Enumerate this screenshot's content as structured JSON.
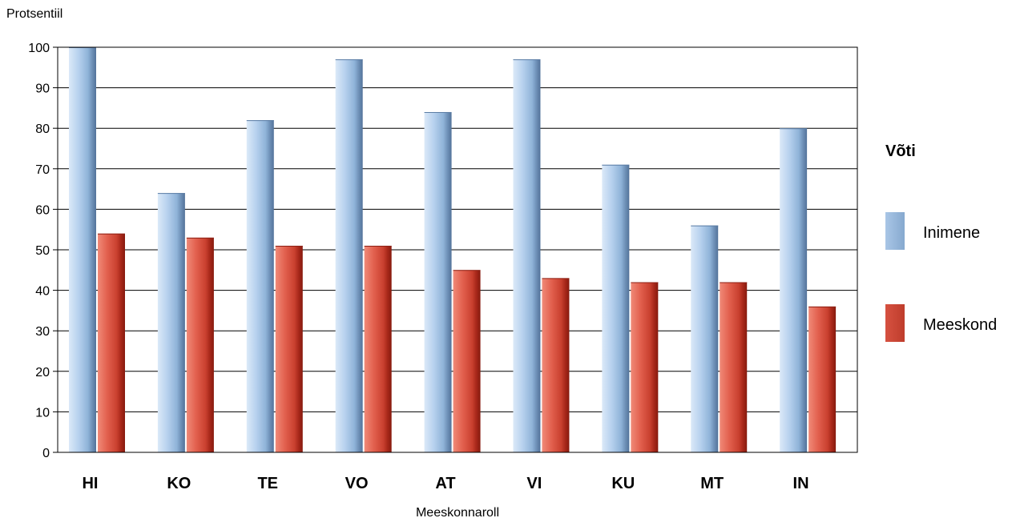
{
  "chart_data": {
    "type": "bar",
    "ylabel": "Protsentiil",
    "xlabel": "Meeskonnaroll",
    "categories": [
      "HI",
      "KO",
      "TE",
      "VO",
      "AT",
      "VI",
      "KU",
      "MT",
      "IN"
    ],
    "series": [
      {
        "name": "Inimene",
        "values": [
          100,
          64,
          82,
          97,
          84,
          97,
          71,
          56,
          80
        ]
      },
      {
        "name": "Meeskond",
        "values": [
          54,
          53,
          51,
          51,
          45,
          43,
          42,
          42,
          36
        ]
      }
    ],
    "ylim": [
      0,
      100
    ],
    "yticks": [
      0,
      10,
      20,
      30,
      40,
      50,
      60,
      70,
      80,
      90,
      100
    ],
    "grid": true,
    "legend": {
      "title": "Võti",
      "position": "right"
    },
    "colors": {
      "Inimene": "#8fb3d8",
      "Meeskond": "#cc4a3c"
    }
  }
}
